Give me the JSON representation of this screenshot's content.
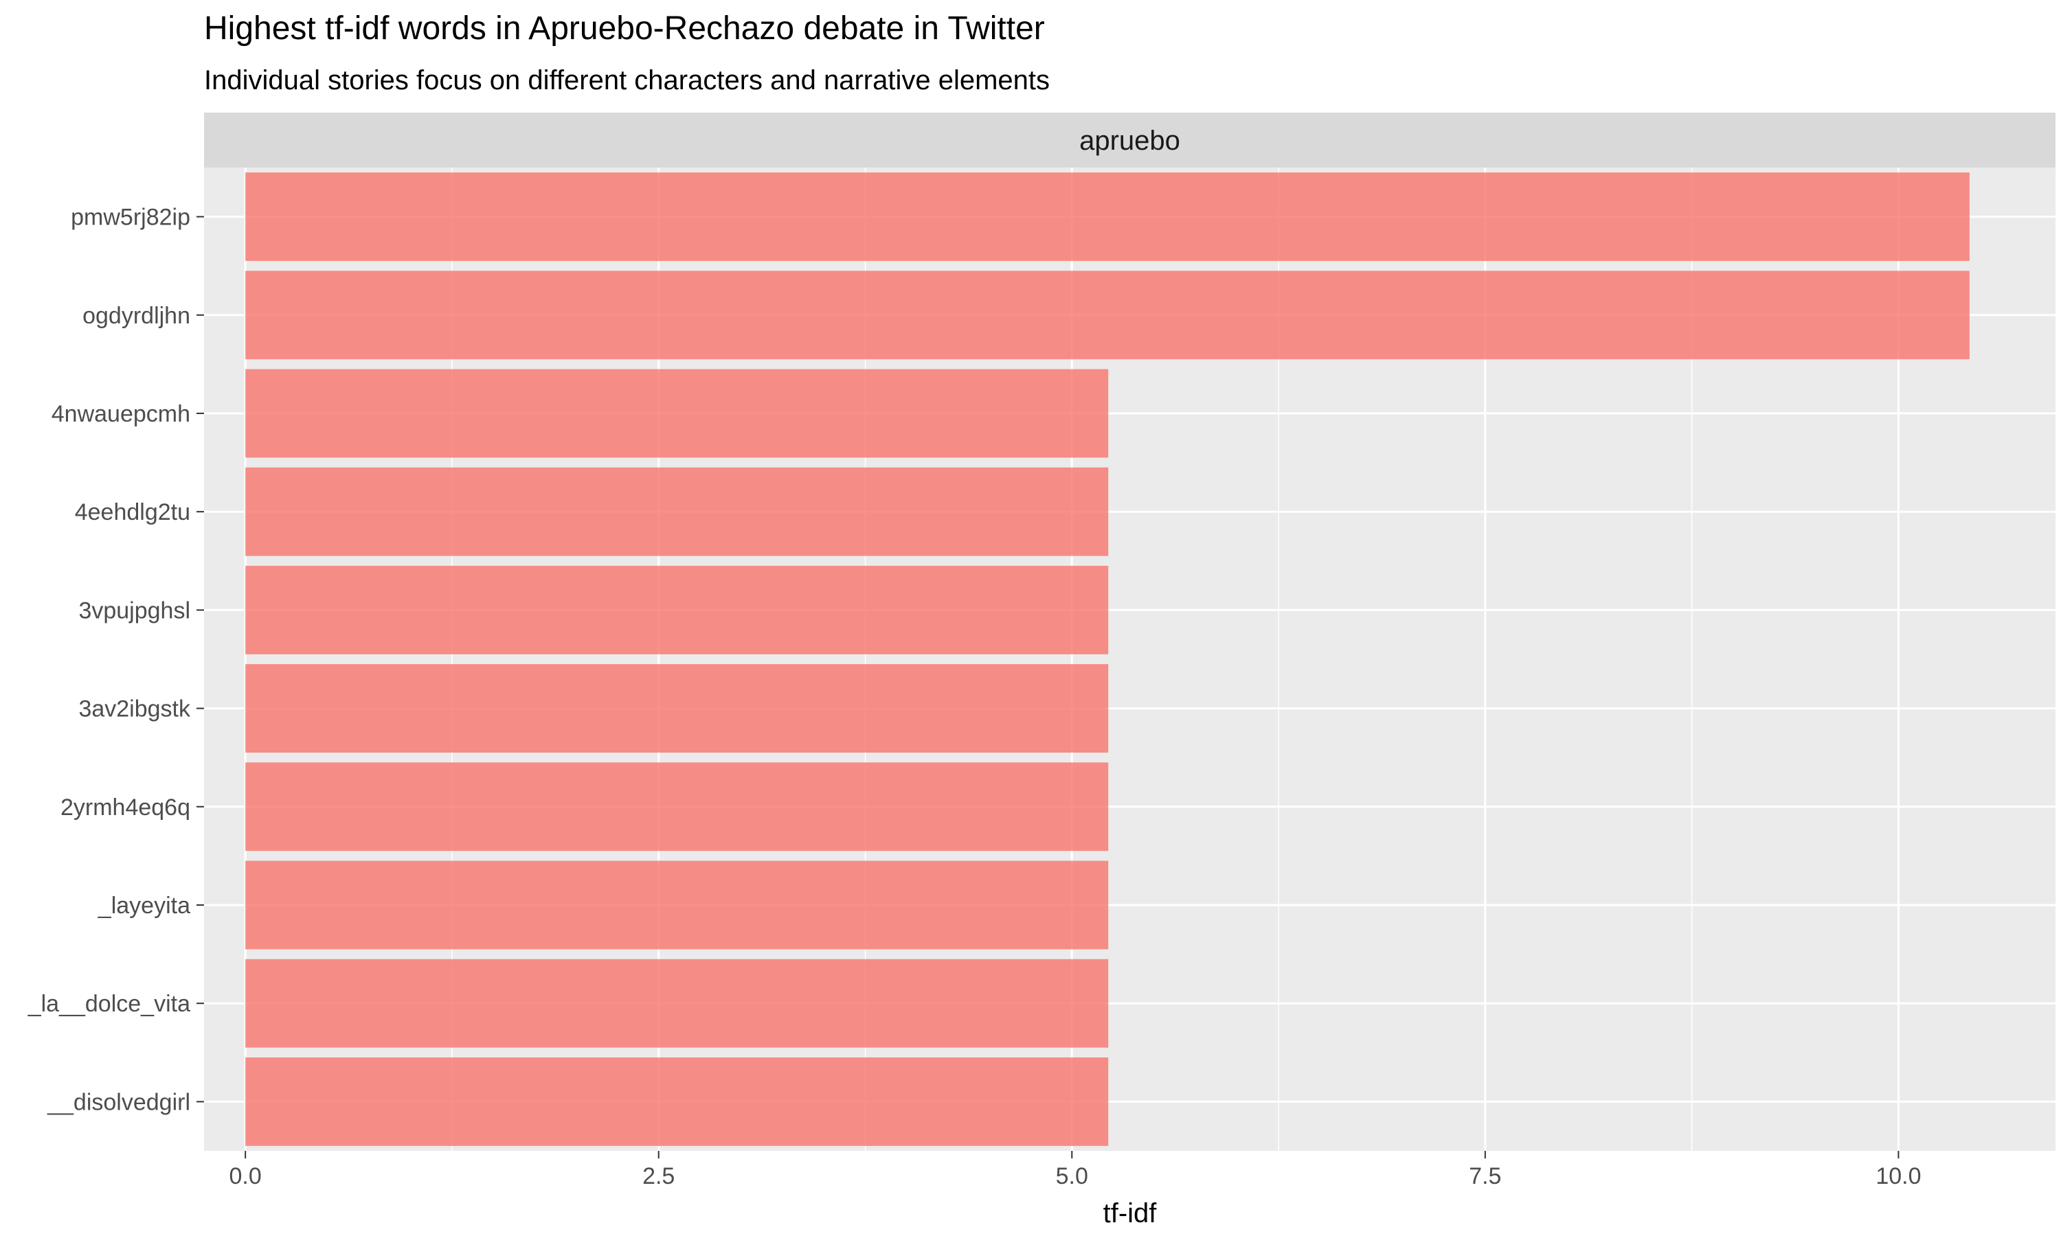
{
  "chart_data": {
    "type": "bar",
    "orientation": "horizontal",
    "title": "Highest tf-idf words in Apruebo-Rechazo debate in Twitter",
    "subtitle": "Individual stories focus on different characters and narrative elements",
    "facet_label": "apruebo",
    "xlabel": "tf-idf",
    "ylabel": "",
    "xlim": [
      -0.25,
      10.95
    ],
    "x_ticks": [
      0.0,
      2.5,
      5.0,
      7.5,
      10.0
    ],
    "x_tick_labels": [
      "0.0",
      "2.5",
      "5.0",
      "7.5",
      "10.0"
    ],
    "categories": [
      "pmw5rj82ip",
      "ogdyrdljhn",
      "4nwauepcmh",
      "4eehdlg2tu",
      "3vpujpghsl",
      "3av2ibgstk",
      "2yrmh4eq6q",
      "_layeyita",
      "_la__dolce_vita",
      "__disolvedgirl"
    ],
    "values": [
      10.43,
      10.43,
      5.22,
      5.22,
      5.22,
      5.22,
      5.22,
      5.22,
      5.22,
      5.22
    ],
    "grid": true,
    "legend": "none",
    "colors": {
      "bar": "#F8766D",
      "panel_bg": "#EBEBEB",
      "strip_bg": "#D9D9D9",
      "grid": "#FFFFFF",
      "tick_text": "#4D4D4D",
      "tick_mark": "#333333",
      "text": "#000000"
    }
  }
}
